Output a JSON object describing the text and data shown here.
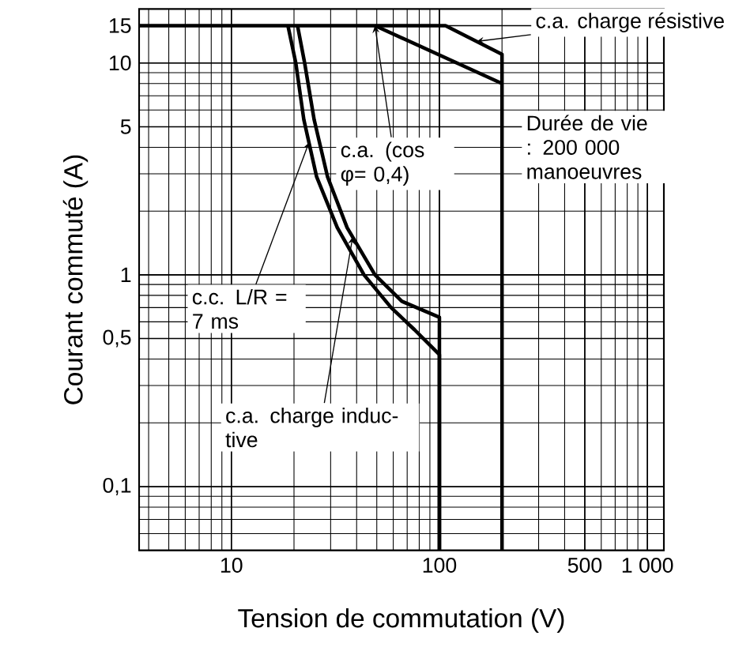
{
  "chart_data": {
    "type": "line",
    "xlabel": "Tension de commutation (V)",
    "ylabel": "Courant commuté (A)",
    "log": "xy",
    "grid": true,
    "marker": "none",
    "line_style": "solid",
    "xlim": [
      3.6,
      1200
    ],
    "ylim": [
      0.05,
      18
    ],
    "xticks": [
      10,
      100,
      500,
      {
        "value": 1000,
        "label": "1 000"
      }
    ],
    "yticks": [
      {
        "value": 0.1,
        "label": "0,1"
      },
      {
        "value": 0.5,
        "label": "0,5"
      },
      1,
      5,
      10,
      15
    ],
    "series": [
      {
        "name": "c.a. charge résistive",
        "color": "#000000",
        "x": [
          3.6,
          107,
          200,
          200
        ],
        "values": [
          15,
          15,
          11,
          0.05
        ]
      },
      {
        "name": "c.a. (cos φ= 0,4)",
        "color": "#000000",
        "x": [
          49,
          200
        ],
        "values": [
          15,
          8
        ]
      },
      {
        "name": "c.c. L/R = 7 ms",
        "color": "#000000",
        "x": [
          18.7,
          20.4,
          22.3,
          25.7,
          32.3,
          43.4,
          58.6,
          76,
          100,
          100
        ],
        "values": [
          15,
          10,
          5.4,
          2.9,
          1.67,
          1.0,
          0.7,
          0.55,
          0.42,
          0.05
        ]
      },
      {
        "name": "c.a. charge induc-tive",
        "color": "#000000",
        "x": [
          20.8,
          22.5,
          25,
          29,
          36,
          49,
          66,
          100,
          100
        ],
        "values": [
          15,
          10,
          5.4,
          2.9,
          1.67,
          1.0,
          0.75,
          0.63,
          0.05
        ]
      }
    ],
    "annotations": [
      "Durée de vie : 200 000 manoeuvres"
    ]
  }
}
